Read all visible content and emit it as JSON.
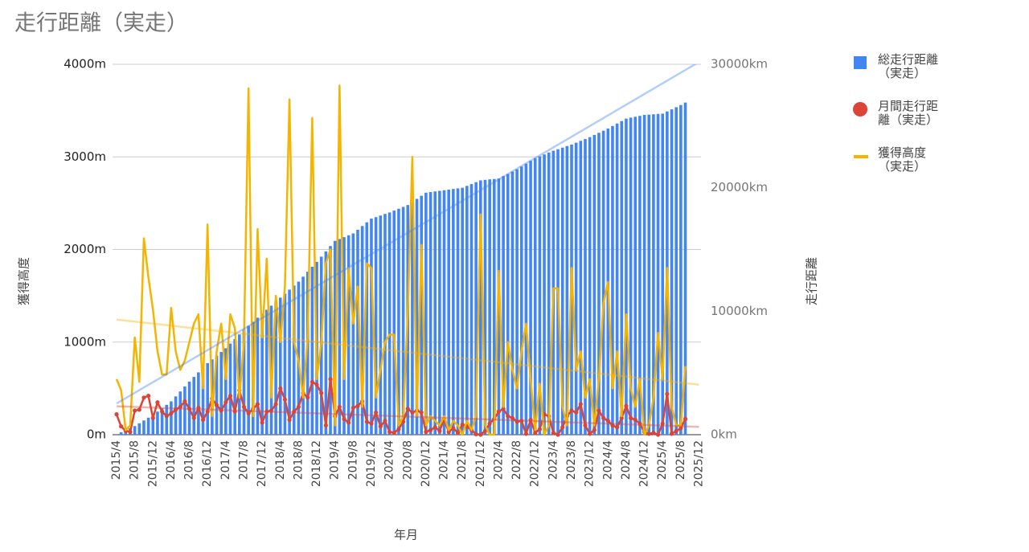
{
  "chart_data": {
    "type": "combo",
    "title": "走行距離（実走）",
    "x_label": "年月",
    "y_label": "獲得高度",
    "y2_label": "走行距離",
    "categories": [
      "2015/4",
      null,
      null,
      null,
      "2015/8",
      null,
      null,
      null,
      "2015/12",
      null,
      null,
      null,
      "2016/4",
      null,
      null,
      null,
      "2016/8",
      null,
      null,
      null,
      "2016/12",
      null,
      null,
      null,
      "2017/4",
      null,
      null,
      null,
      "2017/8",
      null,
      null,
      null,
      "2017/12",
      null,
      null,
      null,
      "2018/4",
      null,
      null,
      null,
      "2018/8",
      null,
      null,
      null,
      "2018/12",
      null,
      null,
      null,
      "2019/4",
      null,
      null,
      null,
      "2019/8",
      null,
      null,
      null,
      "2019/12",
      null,
      null,
      null,
      "2020/4",
      null,
      null,
      null,
      "2020/8",
      null,
      null,
      null,
      "2020/12",
      null,
      null,
      null,
      "2021/4",
      null,
      null,
      null,
      "2021/8",
      null,
      null,
      null,
      "2021/12",
      null,
      null,
      null,
      "2022/4",
      null,
      null,
      null,
      "2022/8",
      null,
      null,
      null,
      "2022/12",
      null,
      null,
      null,
      "2023/4",
      null,
      null,
      null,
      "2023/8",
      null,
      null,
      null,
      "2023/12",
      null,
      null,
      null,
      "2024/4",
      null,
      null,
      null,
      "2024/8",
      null,
      null,
      null,
      "2024/12",
      null,
      null,
      null,
      "2025/4",
      null,
      null,
      null,
      "2025/8",
      null,
      null,
      null,
      "2025/12"
    ],
    "series": [
      {
        "name": "総走行距離（実走）",
        "kind": "bar",
        "axis": "y2",
        "color": "#4285f4",
        "values": [
          50,
          200,
          350,
          520,
          700,
          920,
          1150,
          1380,
          1600,
          1870,
          2150,
          2420,
          2700,
          3100,
          3500,
          3900,
          4300,
          4680,
          5050,
          5420,
          5800,
          6100,
          6400,
          6700,
          7000,
          7380,
          7750,
          8120,
          8500,
          8820,
          9150,
          9480,
          9800,
          10120,
          10450,
          10780,
          11100,
          11420,
          11750,
          12080,
          12400,
          12800,
          13200,
          13600,
          14000,
          14420,
          14850,
          15280,
          15700,
          15850,
          16000,
          16150,
          16300,
          16600,
          16900,
          17200,
          17500,
          17620,
          17750,
          17880,
          18000,
          18150,
          18300,
          18450,
          18600,
          18850,
          19100,
          19350,
          19600,
          19650,
          19700,
          19750,
          19800,
          19850,
          19900,
          19950,
          20000,
          20150,
          20300,
          20450,
          20600,
          20640,
          20680,
          20710,
          20750,
          20940,
          21120,
          21310,
          21500,
          21720,
          21950,
          22180,
          22400,
          22550,
          22700,
          22850,
          23000,
          23120,
          23250,
          23380,
          23500,
          23650,
          23800,
          23950,
          24100,
          24280,
          24450,
          24620,
          24800,
          25000,
          25200,
          25400,
          25600,
          25680,
          25750,
          25820,
          25900,
          25920,
          25950,
          25980,
          26000,
          26180,
          26350,
          26520,
          26700,
          26900,
          null,
          null,
          null
        ]
      },
      {
        "name": "月間走行距離（実走）",
        "kind": "line-points",
        "axis": "y",
        "color": "#db4437",
        "values": [
          220,
          90,
          40,
          30,
          260,
          270,
          400,
          420,
          180,
          350,
          250,
          200,
          230,
          270,
          300,
          360,
          280,
          180,
          290,
          160,
          250,
          390,
          320,
          260,
          350,
          420,
          250,
          480,
          300,
          230,
          280,
          330,
          130,
          250,
          260,
          330,
          500,
          380,
          160,
          250,
          300,
          450,
          400,
          570,
          540,
          450,
          100,
          600,
          200,
          300,
          170,
          130,
          290,
          310,
          360,
          140,
          120,
          240,
          90,
          150,
          30,
          20,
          60,
          140,
          280,
          240,
          260,
          240,
          30,
          50,
          80,
          40,
          170,
          30,
          70,
          20,
          110,
          90,
          50,
          5,
          0,
          40,
          120,
          170,
          250,
          280,
          200,
          180,
          140,
          150,
          10,
          160,
          20,
          60,
          220,
          200,
          20,
          0,
          80,
          200,
          260,
          240,
          330,
          100,
          10,
          50,
          260,
          180,
          150,
          100,
          80,
          180,
          310,
          180,
          160,
          120,
          30,
          10,
          20,
          0,
          120,
          440,
          10,
          40,
          70,
          170,
          null,
          null,
          null
        ]
      },
      {
        "name": "獲得高度（実走）",
        "kind": "line",
        "axis": "y",
        "color": "#f4b400",
        "values": [
          600,
          480,
          50,
          100,
          1050,
          570,
          2120,
          1700,
          1350,
          900,
          650,
          650,
          1370,
          900,
          700,
          800,
          1000,
          1200,
          1300,
          500,
          2270,
          200,
          900,
          1200,
          600,
          1300,
          1150,
          400,
          1000,
          3740,
          200,
          2220,
          1050,
          1900,
          400,
          1500,
          1000,
          1600,
          3620,
          1000,
          800,
          400,
          1050,
          3420,
          600,
          1000,
          1850,
          2000,
          100,
          3770,
          600,
          1800,
          1200,
          1600,
          300,
          1850,
          1800,
          400,
          700,
          1000,
          1080,
          1080,
          100,
          200,
          1300,
          3000,
          200,
          2050,
          100,
          200,
          150,
          100,
          200,
          50,
          150,
          100,
          0,
          150,
          50,
          200,
          2380,
          100,
          0,
          0,
          1770,
          300,
          1000,
          700,
          500,
          900,
          1200,
          600,
          50,
          550,
          0,
          100,
          1580,
          1580,
          300,
          100,
          1800,
          700,
          900,
          400,
          600,
          100,
          600,
          1420,
          1650,
          500,
          900,
          200,
          1300,
          500,
          300,
          600,
          0,
          100,
          400,
          1100,
          600,
          1800,
          300,
          100,
          100,
          740,
          null,
          null,
          null
        ]
      }
    ],
    "ylim": [
      0,
      4000
    ],
    "yticks": [
      {
        "value": 0,
        "label": "0m"
      },
      {
        "value": 1000,
        "label": "1000m"
      },
      {
        "value": 2000,
        "label": "2000m"
      },
      {
        "value": 3000,
        "label": "3000m"
      },
      {
        "value": 4000,
        "label": "4000m"
      }
    ],
    "y2lim": [
      0,
      30000
    ],
    "y2ticks": [
      {
        "value": 0,
        "label": "0km"
      },
      {
        "value": 10000,
        "label": "10000km"
      },
      {
        "value": 20000,
        "label": "20000km"
      },
      {
        "value": 30000,
        "label": "30000km"
      }
    ],
    "grid": true,
    "trendlines": true,
    "legend": "right"
  }
}
